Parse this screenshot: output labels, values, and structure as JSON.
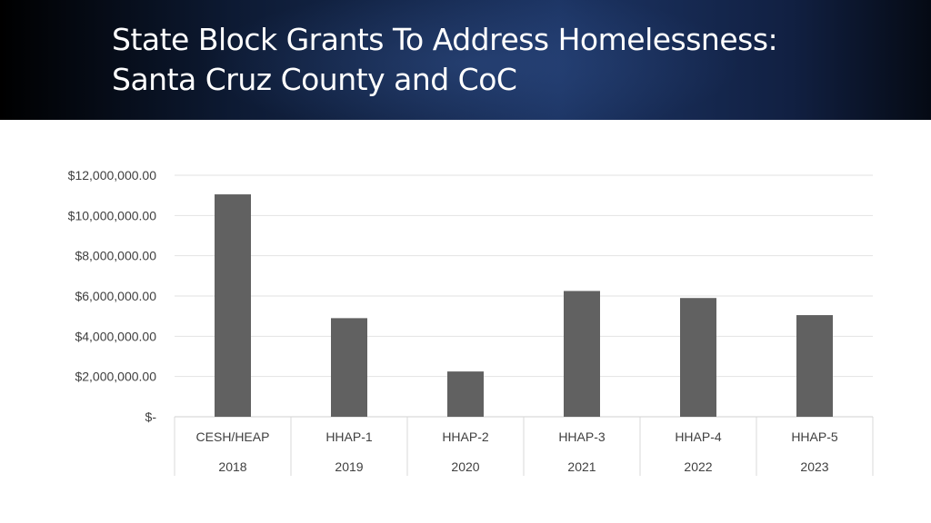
{
  "header": {
    "title_line1": "State Block Grants To Address Homelessness:",
    "title_line2": "Santa Cruz County and CoC"
  },
  "chart_data": {
    "type": "bar",
    "categories": [
      "CESH/HEAP",
      "HHAP-1",
      "HHAP-2",
      "HHAP-3",
      "HHAP-4",
      "HHAP-5"
    ],
    "years": [
      "2018",
      "2019",
      "2020",
      "2021",
      "2022",
      "2023"
    ],
    "values": [
      11050000,
      4900000,
      2250000,
      6250000,
      5900000,
      5050000
    ],
    "ylim": [
      0,
      12000000
    ],
    "yticks": [
      0,
      2000000,
      4000000,
      6000000,
      8000000,
      10000000,
      12000000
    ],
    "ytick_labels": [
      "$-",
      "$2,000,000.00",
      "$4,000,000.00",
      "$6,000,000.00",
      "$8,000,000.00",
      "$10,000,000.00",
      "$12,000,000.00"
    ],
    "grid": true,
    "bar_color": "#616161",
    "title": "",
    "xlabel": "",
    "ylabel": ""
  }
}
